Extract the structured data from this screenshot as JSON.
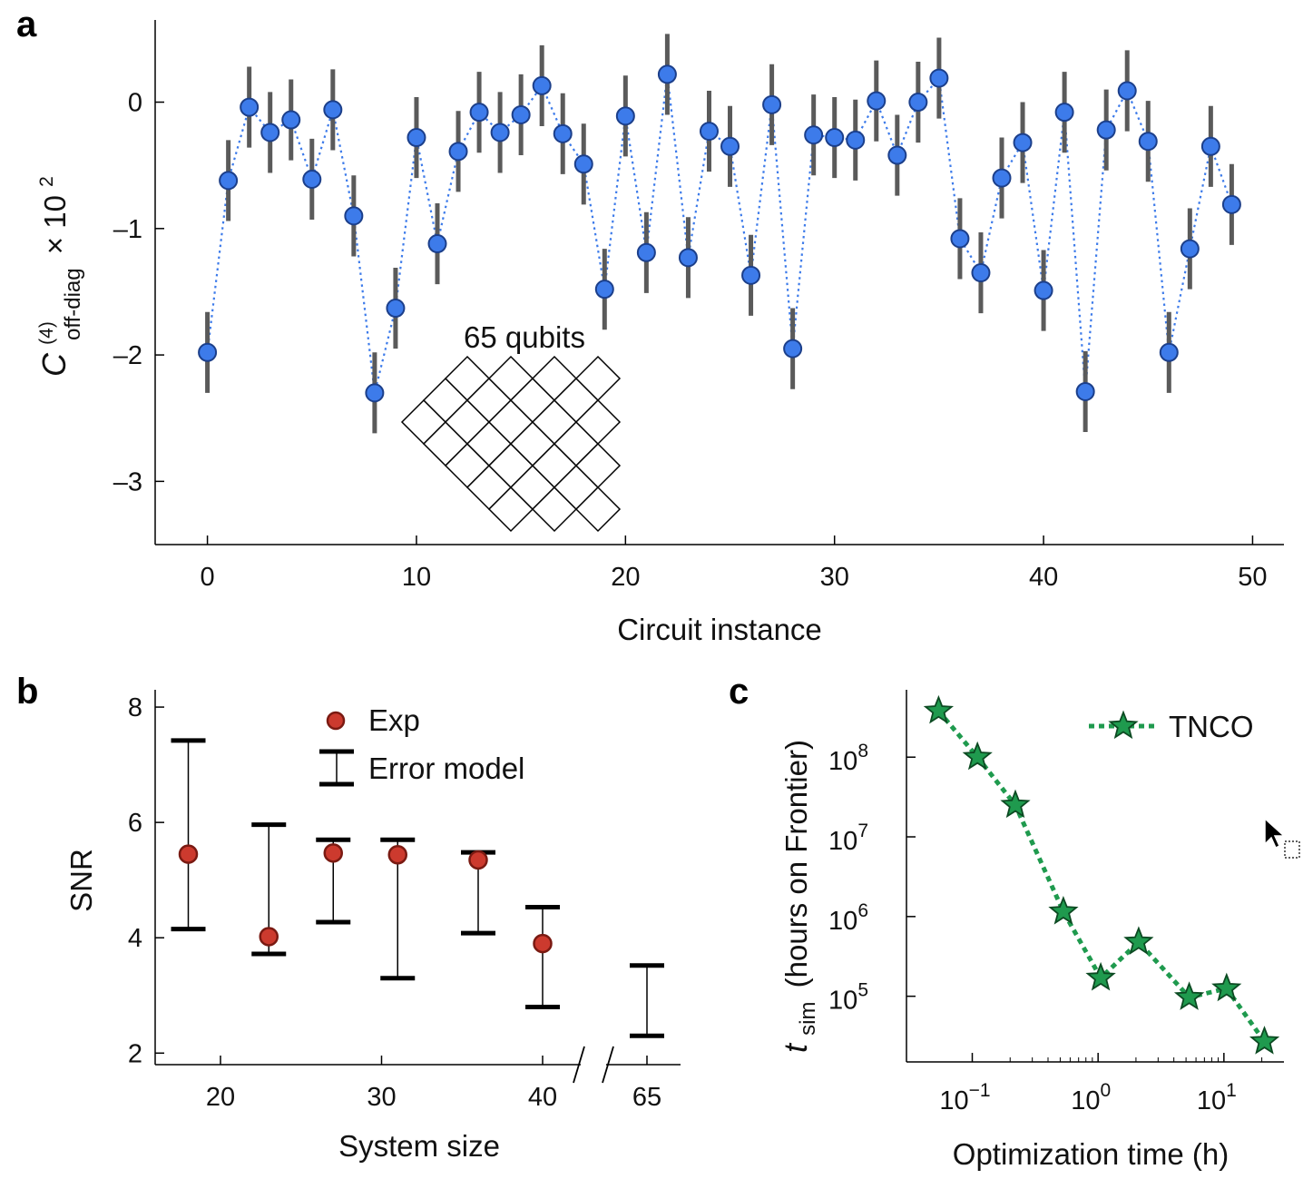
{
  "colors": {
    "panel_a_marker": "#3d7bea",
    "panel_a_marker_edge": "#1c3f8a",
    "panel_a_line": "#3d7bea",
    "panel_a_errorbar": "#5a5a5a",
    "panel_b_marker": "#cc3a2e",
    "panel_b_marker_edge": "#7a1a12",
    "panel_c_marker": "#1f9a4e",
    "panel_c_line": "#1f9a4e",
    "inset_red": "#e47b74",
    "inset_purple": "#9b8fd6"
  },
  "chart_data": [
    {
      "panel": "a",
      "type": "scatter",
      "xlabel": "Circuit instance",
      "ylabel_main": "C",
      "ylabel_sup": "(4)",
      "ylabel_sub": "off-diag",
      "ylabel_tail": "× 10",
      "ylabel_exp": "2",
      "xlim": [
        -2.5,
        51.5
      ],
      "ylim": [
        -3.5,
        0.65
      ],
      "xticks": [
        0,
        10,
        20,
        30,
        40,
        50
      ],
      "xtick_labels": [
        "0",
        "10",
        "20",
        "30",
        "40",
        "50"
      ],
      "yticks": [
        0,
        -1,
        -2,
        -3
      ],
      "ytick_labels": [
        "0",
        "–1",
        "–2",
        "–3"
      ],
      "x": [
        0,
        1,
        2,
        3,
        4,
        5,
        6,
        7,
        8,
        9,
        10,
        11,
        12,
        13,
        14,
        15,
        16,
        17,
        18,
        19,
        20,
        21,
        22,
        23,
        24,
        25,
        26,
        27,
        28,
        29,
        30,
        31,
        32,
        33,
        34,
        35,
        36,
        37,
        38,
        39,
        40,
        41,
        42,
        43,
        44,
        45,
        46,
        47,
        48,
        49
      ],
      "y": [
        -1.98,
        -0.62,
        -0.04,
        -0.24,
        -0.14,
        -0.61,
        -0.06,
        -0.9,
        -2.3,
        -1.63,
        -0.28,
        -1.12,
        -0.39,
        -0.08,
        -0.24,
        -0.1,
        0.13,
        -0.25,
        -0.49,
        -1.48,
        -0.11,
        -1.19,
        0.22,
        -1.23,
        -0.23,
        -0.35,
        -1.37,
        -0.02,
        -1.95,
        -0.26,
        -0.28,
        -0.3,
        0.01,
        -0.42,
        0.0,
        0.19,
        -1.08,
        -1.35,
        -0.6,
        -0.32,
        -1.49,
        -0.08,
        -2.29,
        -0.22,
        0.09,
        -0.31,
        -1.98,
        -1.16,
        -0.35,
        -0.81
      ],
      "yerr": 0.32,
      "inset": {
        "label": "65 qubits",
        "grid_rows": 7,
        "grid_cols": 9,
        "highlighted_cells": [
          {
            "row": 0,
            "col": 5,
            "color": "red"
          },
          {
            "row": 0,
            "col": 6,
            "color": "red"
          },
          {
            "row": 6,
            "col": 4,
            "color": "purple"
          },
          {
            "row": 6,
            "col": 8,
            "color": "red"
          }
        ]
      }
    },
    {
      "panel": "b",
      "type": "scatter",
      "xlabel": "System size",
      "ylabel": "SNR",
      "ylim": [
        1.8,
        8.3
      ],
      "yticks": [
        2,
        4,
        6,
        8
      ],
      "ytick_labels": [
        "2",
        "4",
        "6",
        "8"
      ],
      "xtick_labels": [
        "20",
        "30",
        "40",
        "65"
      ],
      "axis_break": true,
      "legend": [
        {
          "marker": "circle",
          "label": "Exp"
        },
        {
          "marker": "errorbar",
          "label": "Error model"
        }
      ],
      "system_sizes": [
        18,
        23,
        27,
        31,
        36,
        40,
        65
      ],
      "exp_snr": [
        5.45,
        4.02,
        5.47,
        5.44,
        5.35,
        3.9,
        null
      ],
      "model_low": [
        4.15,
        3.72,
        4.27,
        3.3,
        4.08,
        2.8,
        2.3
      ],
      "model_high": [
        7.42,
        5.96,
        5.7,
        5.7,
        5.48,
        4.53,
        3.52
      ]
    },
    {
      "panel": "c",
      "type": "line",
      "xlabel": "Optimization time (h)",
      "ylabel_main": "t",
      "ylabel_sub": "sim",
      "ylabel_tail": "(hours on Frontier)",
      "xscale": "log",
      "yscale": "log",
      "xlim": [
        0.03,
        30
      ],
      "ylim": [
        15000,
        700000000
      ],
      "xticks": [
        0.1,
        1,
        10
      ],
      "xtick_base": [
        "10",
        "10",
        "10"
      ],
      "xtick_exp": [
        "−1",
        "0",
        "1"
      ],
      "yticks": [
        100000,
        1000000,
        10000000,
        100000000
      ],
      "ytick_base": [
        "10",
        "10",
        "10",
        "10"
      ],
      "ytick_exp": [
        "5",
        "6",
        "7",
        "8"
      ],
      "legend": [
        {
          "marker": "star",
          "label": "TNCO"
        }
      ],
      "series": [
        {
          "name": "TNCO",
          "x": [
            0.054,
            0.11,
            0.22,
            0.53,
            1.05,
            2.1,
            5.3,
            10.5,
            21
          ],
          "y": [
            380000000,
            100000000,
            25000000,
            1150000,
            170000,
            480000,
            97000,
            125000,
            27000
          ]
        }
      ]
    }
  ]
}
